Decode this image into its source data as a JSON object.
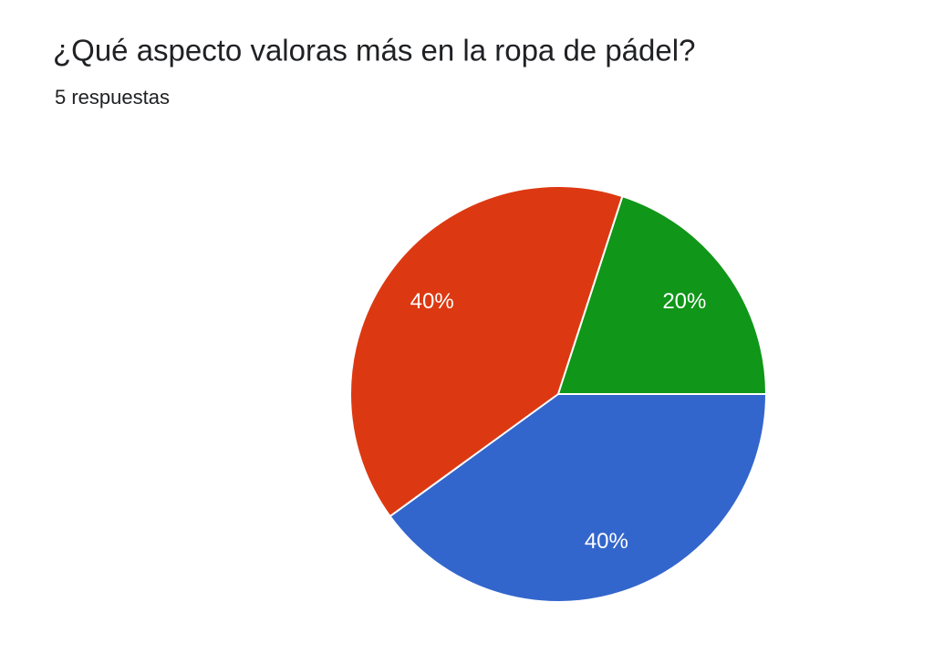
{
  "chart_data": {
    "type": "pie",
    "title": "¿Qué aspecto valoras más en la ropa de pádel?",
    "subtitle": "5 respuestas",
    "values": [
      40,
      40,
      20
    ],
    "value_labels": [
      "40%",
      "40%",
      "20%"
    ],
    "colors": [
      "#3366cc",
      "#dc3912",
      "#109618"
    ]
  }
}
